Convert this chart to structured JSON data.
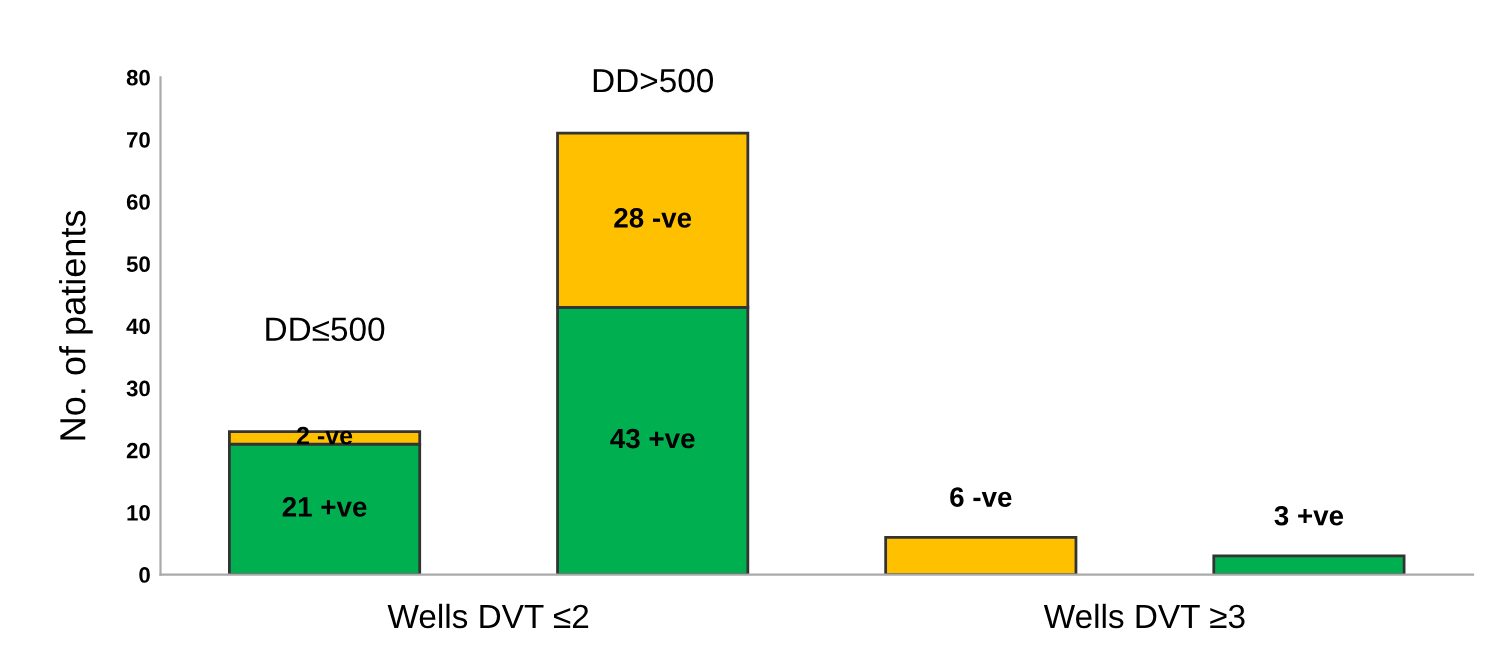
{
  "chart_data": {
    "type": "bar",
    "stacked": true,
    "ylabel": "No. of patients",
    "categories": [
      null,
      null,
      null,
      null
    ],
    "series": [
      {
        "color": "#00b050",
        "values": [
          21,
          43,
          null,
          3
        ],
        "value_labels": [
          "21 +ve",
          "43 +ve",
          null,
          "3 +ve"
        ]
      },
      {
        "color": "#ffc000",
        "values": [
          2,
          28,
          6,
          null
        ],
        "value_labels": [
          "2 -ve",
          "28 -ve",
          "6 -ve",
          null
        ]
      }
    ],
    "ylim": [
      0,
      80
    ],
    "yticks": [
      0,
      10,
      20,
      30,
      40,
      50,
      60,
      70,
      80
    ],
    "annotations": [
      "DD≤500",
      "DD>500",
      "Wells DVT ≤2",
      "Wells DVT ≥3"
    ],
    "grid": false,
    "legend": false
  }
}
